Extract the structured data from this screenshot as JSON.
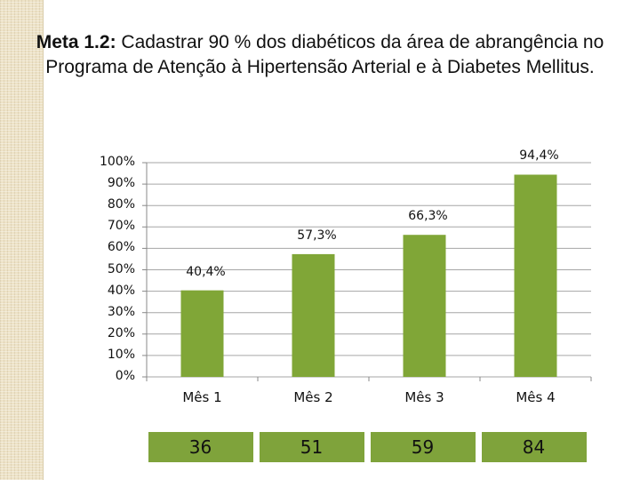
{
  "title": {
    "bold": "Meta 1.2:",
    "rest": " Cadastrar 90 % dos diabéticos da área de abrangência no Programa de Atenção à Hipertensão Arterial e à Diabetes Mellitus."
  },
  "chart_data": {
    "type": "bar",
    "categories": [
      "Mês 1",
      "Mês 2",
      "Mês 3",
      "Mês 4"
    ],
    "values": [
      40.4,
      57.3,
      66.3,
      94.4
    ],
    "data_labels": [
      "40,4%",
      "57,3%",
      "66,3%",
      "94,4%"
    ],
    "ylim": [
      0,
      100
    ],
    "yticks": [
      "0%",
      "10%",
      "20%",
      "30%",
      "40%",
      "50%",
      "60%",
      "70%",
      "80%",
      "90%",
      "100%"
    ],
    "grid": true,
    "bar_color": "#80a637",
    "counts": [
      "36",
      "51",
      "59",
      "84"
    ]
  }
}
